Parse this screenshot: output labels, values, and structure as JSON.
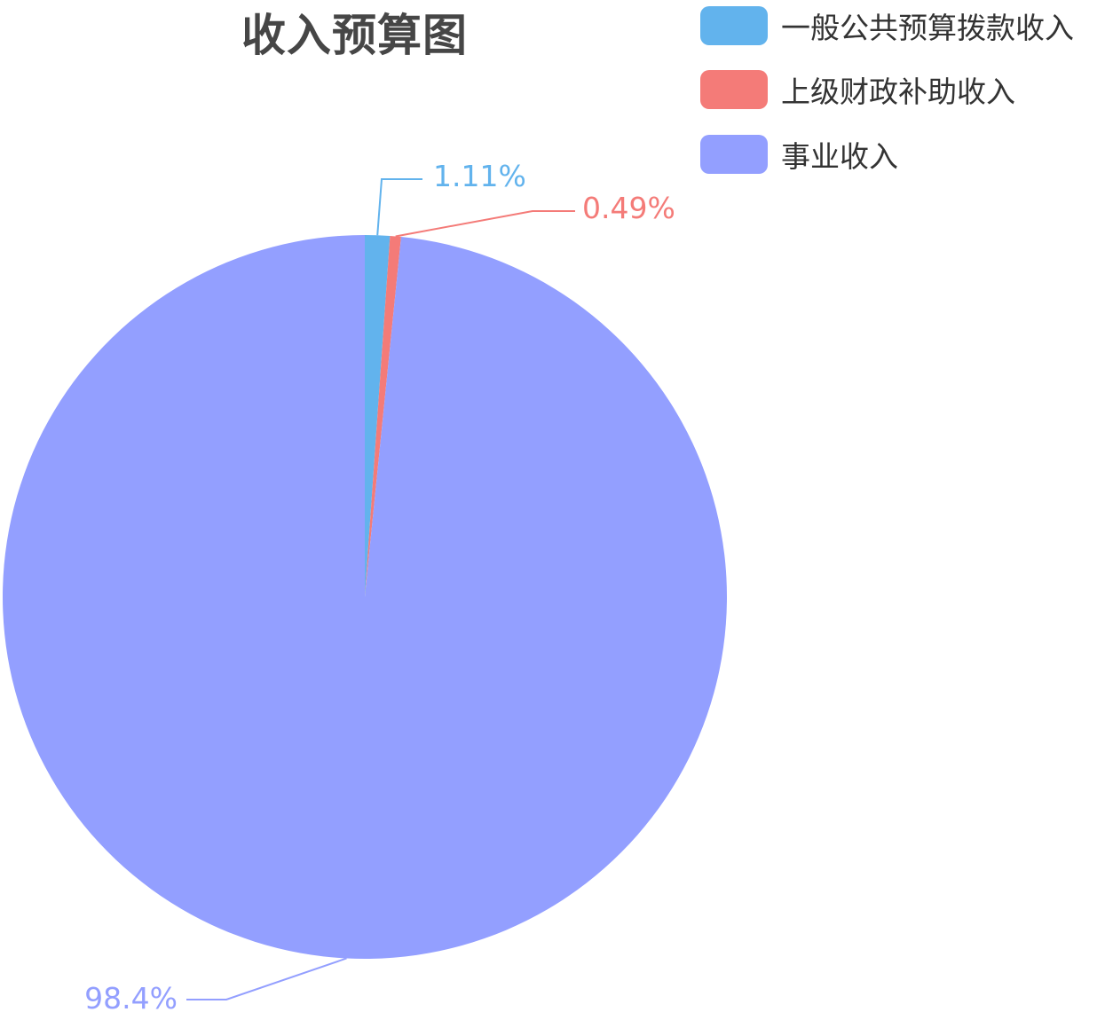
{
  "chart_data": {
    "type": "pie",
    "title": "收入预算图",
    "start_angle": "top, clockwise",
    "legend_position": "top-right",
    "slices": [
      {
        "name": "一般公共预算拨款收入",
        "value": 1.11,
        "label": "1.11%",
        "color": "#62b3ed"
      },
      {
        "name": "上级财政补助收入",
        "value": 0.49,
        "label": "0.49%",
        "color": "#f47b78"
      },
      {
        "name": "事业收入",
        "value": 98.4,
        "label": "98.4%",
        "color": "#939fff"
      }
    ]
  }
}
